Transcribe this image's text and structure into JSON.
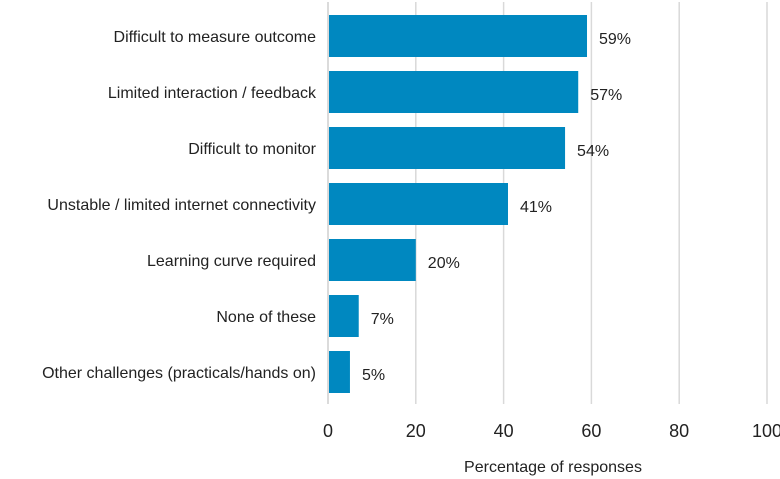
{
  "chart_data": {
    "type": "bar",
    "orientation": "horizontal",
    "categories": [
      "Difficult to measure outcome",
      "Limited interaction / feedback",
      "Difficult to monitor",
      "Unstable / limited internet connectivity",
      "Learning curve required",
      "None of these",
      "Other challenges (practicals/hands on)"
    ],
    "values": [
      59,
      57,
      54,
      41,
      20,
      7,
      5
    ],
    "value_labels": [
      "59%",
      "57%",
      "54%",
      "41%",
      "20%",
      "7%",
      "5%"
    ],
    "title": "",
    "xlabel": "Percentage of responses",
    "ylabel": "",
    "xlim": [
      0,
      100
    ],
    "xticks": [
      0,
      20,
      40,
      60,
      80,
      100
    ],
    "xtick_labels": [
      "0",
      "20",
      "40",
      "60",
      "80",
      "100"
    ],
    "grid": true,
    "bar_color": "#0088c0"
  }
}
